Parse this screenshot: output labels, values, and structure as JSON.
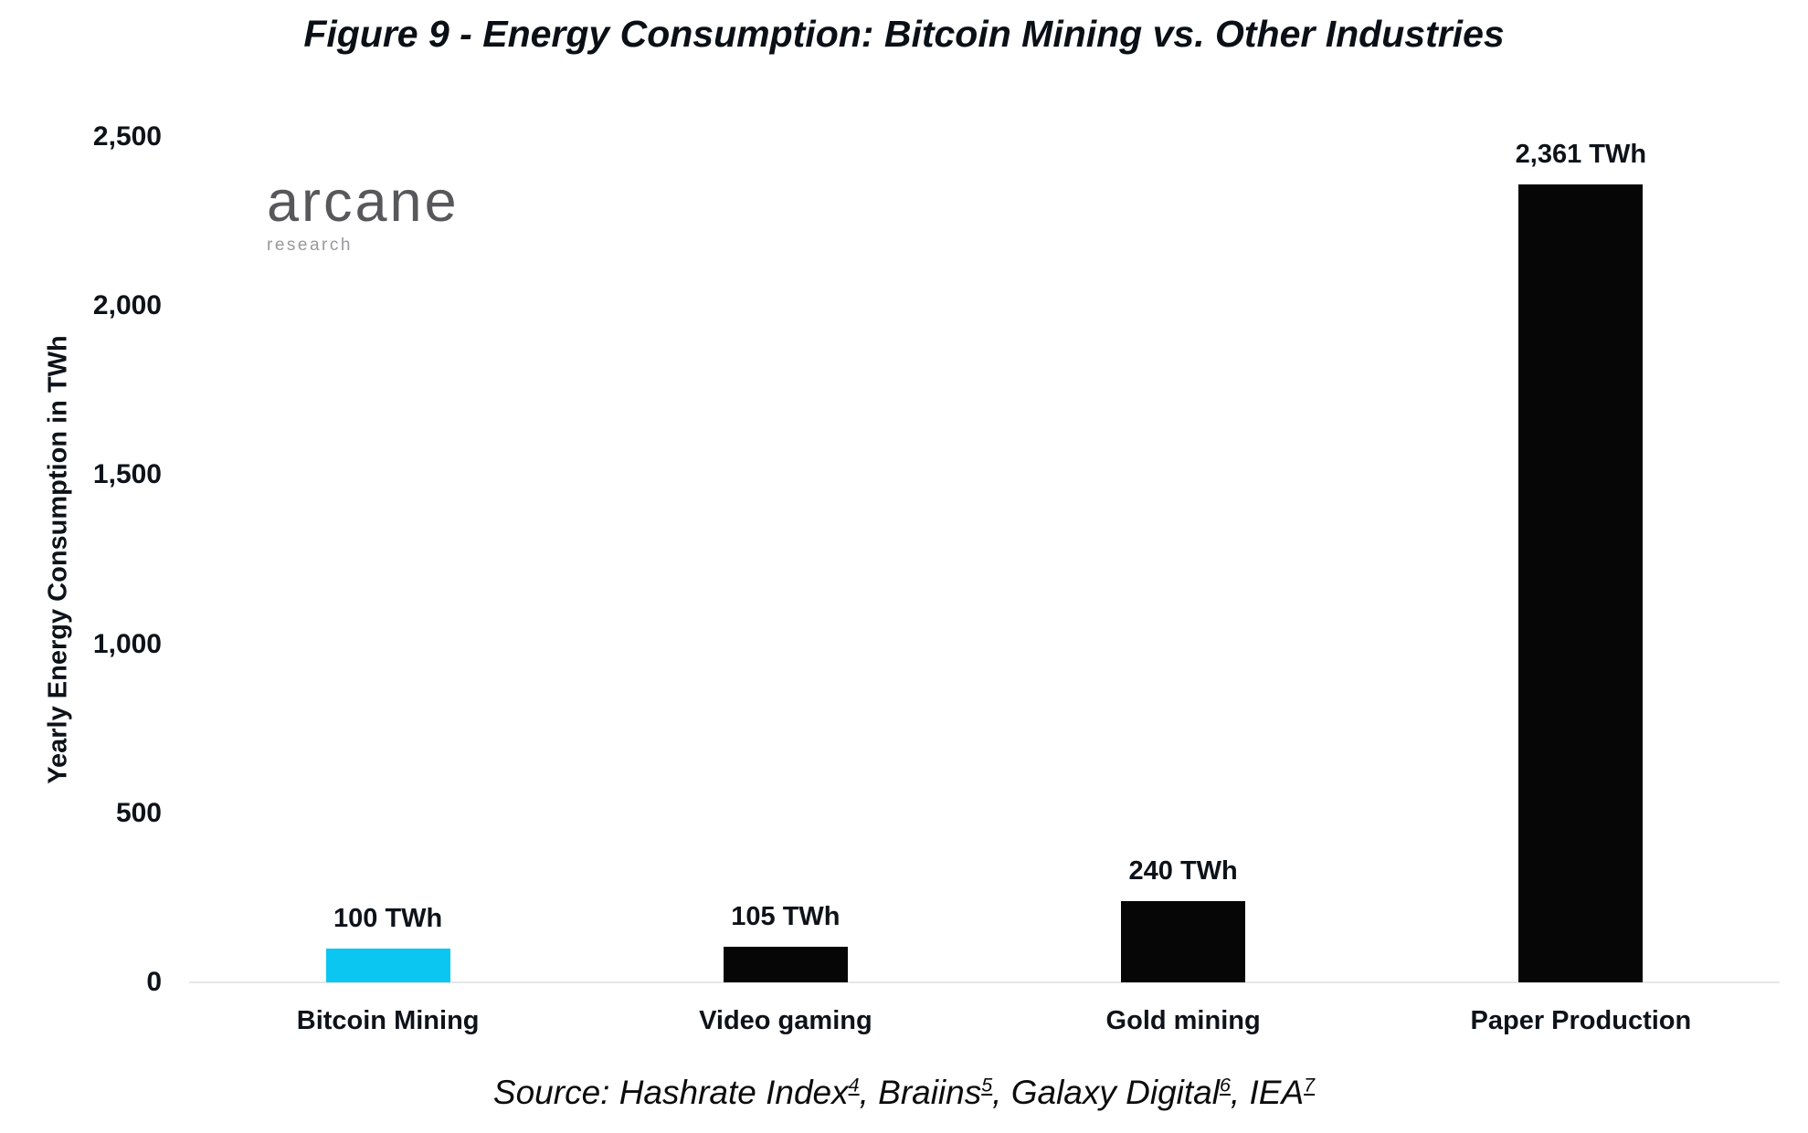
{
  "page": {
    "background": "#ffffff",
    "text_color": "#0e1219"
  },
  "logo": {
    "name": "arcane",
    "subtitle": "research",
    "name_color": "#57585b",
    "subtitle_color": "#98999c"
  },
  "chart_data": {
    "type": "bar",
    "title": "Figure 9 - Energy Consumption: Bitcoin Mining vs. Other Industries",
    "categories": [
      "Bitcoin Mining",
      "Video gaming",
      "Gold mining",
      "Paper Production"
    ],
    "values": [
      100,
      105,
      240,
      2361
    ],
    "value_labels": [
      "100 TWh",
      "105 TWh",
      "240 TWh",
      "2,361 TWh"
    ],
    "bar_colors": [
      "#0cc6f2",
      "#060606",
      "#060606",
      "#060606"
    ],
    "accent_color": "#0cc6f2",
    "bar_default_color": "#060606",
    "xlabel": "",
    "ylabel": "Yearly Energy Consumption in TWh",
    "ylim": [
      0,
      2500
    ],
    "yticks": [
      0,
      500,
      1000,
      1500,
      2000,
      2500
    ],
    "ytick_labels": [
      "0",
      "500",
      "1,000",
      "1,500",
      "2,000",
      "2,500"
    ],
    "gridlines": "baseline-only",
    "baseline_color": "#e7e7e7",
    "legend": "none"
  },
  "source": {
    "segments": [
      {
        "text": "Source: Hashrate Index",
        "sup": "4"
      },
      {
        "text": ", Braiins",
        "sup": "5"
      },
      {
        "text": ", Galaxy Digital",
        "sup": "6"
      },
      {
        "text": ", IEA",
        "sup": "7"
      }
    ]
  }
}
